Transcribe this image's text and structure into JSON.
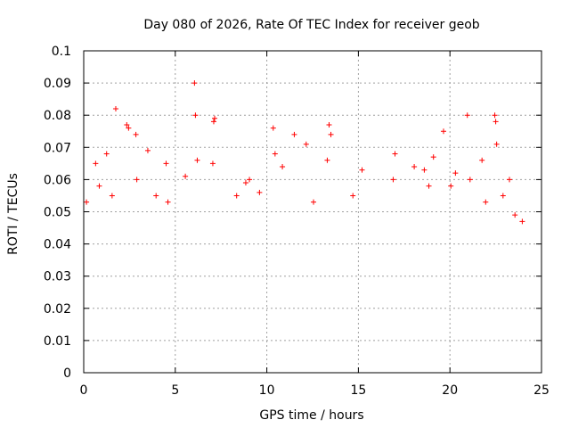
{
  "chart_data": {
    "type": "scatter",
    "title": "Day 080 of 2026, Rate Of TEC Index for receiver geob",
    "xlabel": "GPS time / hours",
    "ylabel": "ROTI / TECUs",
    "xlim": [
      0,
      25
    ],
    "ylim": [
      0,
      0.1
    ],
    "xticks": [
      0,
      5,
      10,
      15,
      20,
      25
    ],
    "xtick_labels": [
      "0",
      "5",
      "10",
      "15",
      "20",
      "25"
    ],
    "yticks": [
      0,
      0.01,
      0.02,
      0.03,
      0.04,
      0.05,
      0.06,
      0.07,
      0.08,
      0.09,
      0.1
    ],
    "ytick_labels": [
      "0",
      "0.01",
      "0.02",
      "0.03",
      "0.04",
      "0.05",
      "0.06",
      "0.07",
      "0.08",
      "0.09",
      "0.1"
    ],
    "grid": true,
    "marker": "+",
    "color": "#ff0000",
    "series": [
      {
        "points": [
          [
            1.75,
            0.082
          ],
          [
            6.05,
            0.09
          ],
          [
            6.1,
            0.08
          ],
          [
            7.15,
            0.079
          ],
          [
            7.1,
            0.078
          ],
          [
            2.35,
            0.077
          ],
          [
            2.45,
            0.076
          ],
          [
            13.4,
            0.077
          ],
          [
            13.5,
            0.074
          ],
          [
            10.35,
            0.076
          ],
          [
            11.5,
            0.074
          ],
          [
            20.95,
            0.08
          ],
          [
            22.45,
            0.08
          ],
          [
            22.5,
            0.078
          ],
          [
            19.65,
            0.075
          ],
          [
            17.0,
            0.068
          ],
          [
            22.55,
            0.071
          ],
          [
            2.85,
            0.074
          ],
          [
            3.5,
            0.069
          ],
          [
            12.15,
            0.071
          ],
          [
            0.65,
            0.065
          ],
          [
            1.25,
            0.068
          ],
          [
            4.5,
            0.065
          ],
          [
            5.55,
            0.061
          ],
          [
            6.2,
            0.066
          ],
          [
            7.05,
            0.065
          ],
          [
            8.85,
            0.059
          ],
          [
            10.45,
            0.068
          ],
          [
            10.85,
            0.064
          ],
          [
            13.3,
            0.066
          ],
          [
            15.2,
            0.063
          ],
          [
            18.05,
            0.064
          ],
          [
            18.6,
            0.063
          ],
          [
            19.1,
            0.067
          ],
          [
            20.3,
            0.062
          ],
          [
            21.75,
            0.066
          ],
          [
            23.25,
            0.06
          ],
          [
            0.15,
            0.053
          ],
          [
            0.85,
            0.058
          ],
          [
            1.55,
            0.055
          ],
          [
            2.9,
            0.06
          ],
          [
            3.95,
            0.055
          ],
          [
            4.6,
            0.053
          ],
          [
            8.35,
            0.055
          ],
          [
            9.05,
            0.06
          ],
          [
            9.6,
            0.056
          ],
          [
            12.55,
            0.053
          ],
          [
            14.7,
            0.055
          ],
          [
            16.9,
            0.06
          ],
          [
            18.85,
            0.058
          ],
          [
            20.05,
            0.058
          ],
          [
            21.1,
            0.06
          ],
          [
            21.95,
            0.053
          ],
          [
            22.9,
            0.055
          ],
          [
            23.55,
            0.049
          ],
          [
            23.95,
            0.047
          ]
        ]
      }
    ]
  }
}
